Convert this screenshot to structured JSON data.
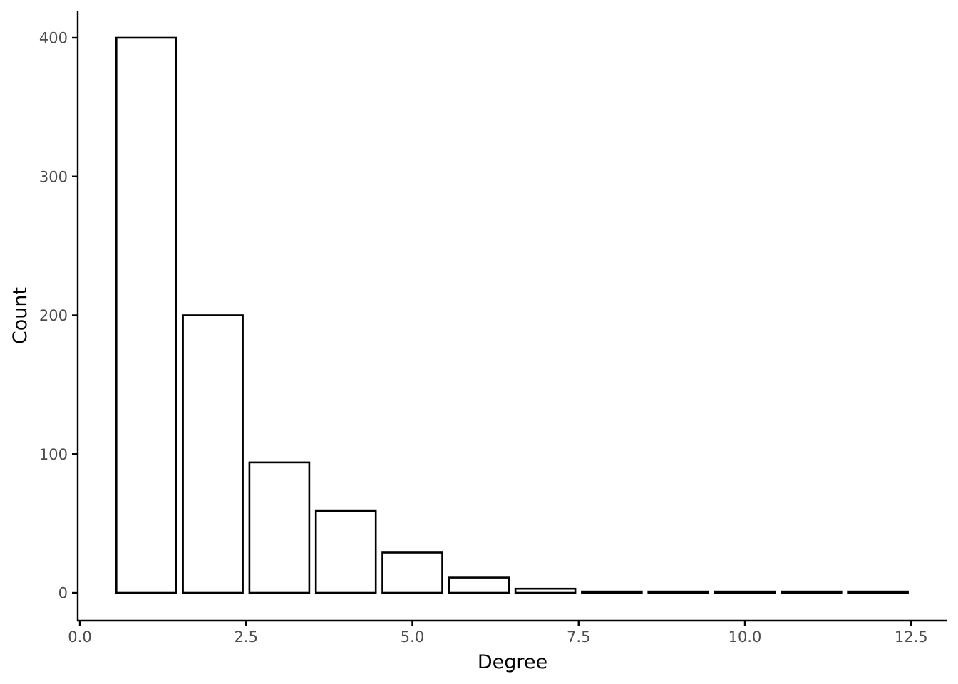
{
  "chart_data": {
    "type": "bar",
    "xlabel": "Degree",
    "ylabel": "Count",
    "x": [
      1,
      2,
      3,
      4,
      5,
      6,
      7,
      8,
      9,
      10,
      11,
      12
    ],
    "values": [
      400,
      200,
      94,
      59,
      29,
      11,
      3,
      1,
      1,
      1,
      1,
      1
    ],
    "xlim": [
      0,
      12.5
    ],
    "ylim": [
      0,
      400
    ],
    "x_ticks": [
      0,
      2.5,
      5,
      7.5,
      10,
      12.5
    ],
    "x_tick_labels": [
      "0.0",
      "2.5",
      "5.0",
      "7.5",
      "10.0",
      "12.5"
    ],
    "y_ticks": [
      0,
      100,
      200,
      300,
      400
    ],
    "y_tick_labels": [
      "0",
      "100",
      "200",
      "300",
      "400"
    ],
    "grid": false,
    "legend": "none",
    "bar_fill": "#ffffff",
    "bar_stroke": "#000000"
  }
}
